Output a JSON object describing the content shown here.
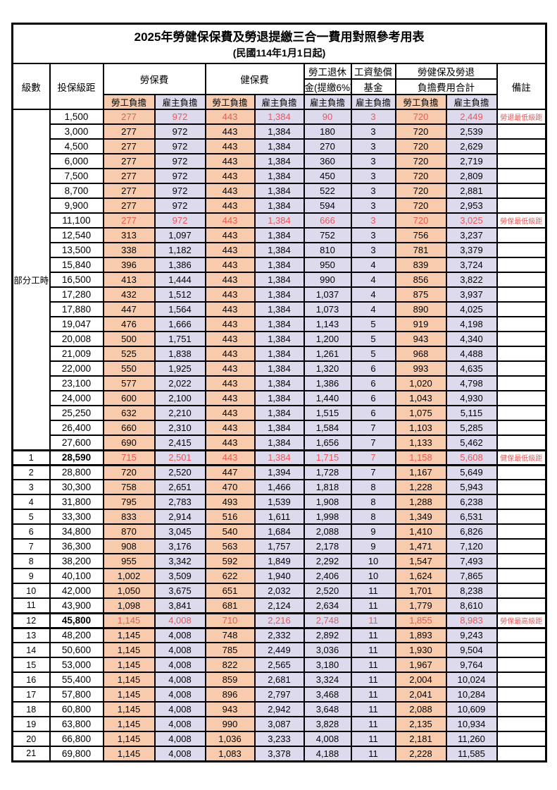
{
  "title": "2025年勞健保保費及勞退提繳三合一費用對照參考用表",
  "subtitle": "(民國114年1月1日起)",
  "colors": {
    "employee_column_bg": "#f8cbad",
    "employer_column_bg": "#dddaee",
    "highlight_text": "#e65a5a",
    "border": "#000000"
  },
  "header": {
    "level": "級數",
    "bracket": "投保級距",
    "labor_fee": "勞保費",
    "health_fee": "健保費",
    "pension_line1": "勞工退休",
    "pension_line2": "金(提繳6%)",
    "wage_fund_line1": "工資墊償",
    "wage_fund_line2": "基金",
    "total_line1": "勞健保及勞退",
    "total_line2": "負擔費用合計",
    "remark": "備註",
    "employee_share": "勞工負擔",
    "employer_share": "雇主負擔"
  },
  "part_time_label": "部分工時",
  "part_time_span": 23,
  "rows": [
    {
      "level": "",
      "bracket": "1,500",
      "values": [
        "277",
        "972",
        "443",
        "1,384",
        "90",
        "3",
        "720",
        "2,449"
      ],
      "remark": "勞退最低級距",
      "red": true,
      "bold": false,
      "thick": false
    },
    {
      "level": "",
      "bracket": "3,000",
      "values": [
        "277",
        "972",
        "443",
        "1,384",
        "180",
        "3",
        "720",
        "2,539"
      ],
      "remark": "",
      "red": false,
      "bold": false,
      "thick": false
    },
    {
      "level": "",
      "bracket": "4,500",
      "values": [
        "277",
        "972",
        "443",
        "1,384",
        "270",
        "3",
        "720",
        "2,629"
      ],
      "remark": "",
      "red": false,
      "bold": false,
      "thick": false
    },
    {
      "level": "",
      "bracket": "6,000",
      "values": [
        "277",
        "972",
        "443",
        "1,384",
        "360",
        "3",
        "720",
        "2,719"
      ],
      "remark": "",
      "red": false,
      "bold": false,
      "thick": false
    },
    {
      "level": "",
      "bracket": "7,500",
      "values": [
        "277",
        "972",
        "443",
        "1,384",
        "450",
        "3",
        "720",
        "2,809"
      ],
      "remark": "",
      "red": false,
      "bold": false,
      "thick": false
    },
    {
      "level": "",
      "bracket": "8,700",
      "values": [
        "277",
        "972",
        "443",
        "1,384",
        "522",
        "3",
        "720",
        "2,881"
      ],
      "remark": "",
      "red": false,
      "bold": false,
      "thick": false
    },
    {
      "level": "",
      "bracket": "9,900",
      "values": [
        "277",
        "972",
        "443",
        "1,384",
        "594",
        "3",
        "720",
        "2,953"
      ],
      "remark": "",
      "red": false,
      "bold": false,
      "thick": false
    },
    {
      "level": "",
      "bracket": "11,100",
      "values": [
        "277",
        "972",
        "443",
        "1,384",
        "666",
        "3",
        "720",
        "3,025"
      ],
      "remark": "勞保最低級距",
      "red": true,
      "bold": false,
      "thick": false
    },
    {
      "level": "",
      "bracket": "12,540",
      "values": [
        "313",
        "1,097",
        "443",
        "1,384",
        "752",
        "3",
        "756",
        "3,237"
      ],
      "remark": "",
      "red": false,
      "bold": false,
      "thick": false
    },
    {
      "level": "",
      "bracket": "13,500",
      "values": [
        "338",
        "1,182",
        "443",
        "1,384",
        "810",
        "3",
        "781",
        "3,379"
      ],
      "remark": "",
      "red": false,
      "bold": false,
      "thick": false
    },
    {
      "level": "",
      "bracket": "15,840",
      "values": [
        "396",
        "1,386",
        "443",
        "1,384",
        "950",
        "4",
        "839",
        "3,724"
      ],
      "remark": "",
      "red": false,
      "bold": false,
      "thick": false
    },
    {
      "level": "",
      "bracket": "16,500",
      "values": [
        "413",
        "1,444",
        "443",
        "1,384",
        "990",
        "4",
        "856",
        "3,822"
      ],
      "remark": "",
      "red": false,
      "bold": false,
      "thick": false
    },
    {
      "level": "",
      "bracket": "17,280",
      "values": [
        "432",
        "1,512",
        "443",
        "1,384",
        "1,037",
        "4",
        "875",
        "3,937"
      ],
      "remark": "",
      "red": false,
      "bold": false,
      "thick": false
    },
    {
      "level": "",
      "bracket": "17,880",
      "values": [
        "447",
        "1,564",
        "443",
        "1,384",
        "1,073",
        "4",
        "890",
        "4,025"
      ],
      "remark": "",
      "red": false,
      "bold": false,
      "thick": false
    },
    {
      "level": "",
      "bracket": "19,047",
      "values": [
        "476",
        "1,666",
        "443",
        "1,384",
        "1,143",
        "5",
        "919",
        "4,198"
      ],
      "remark": "",
      "red": false,
      "bold": false,
      "thick": false
    },
    {
      "level": "",
      "bracket": "20,008",
      "values": [
        "500",
        "1,751",
        "443",
        "1,384",
        "1,200",
        "5",
        "943",
        "4,340"
      ],
      "remark": "",
      "red": false,
      "bold": false,
      "thick": false
    },
    {
      "level": "",
      "bracket": "21,009",
      "values": [
        "525",
        "1,838",
        "443",
        "1,384",
        "1,261",
        "5",
        "968",
        "4,488"
      ],
      "remark": "",
      "red": false,
      "bold": false,
      "thick": false
    },
    {
      "level": "",
      "bracket": "22,000",
      "values": [
        "550",
        "1,925",
        "443",
        "1,384",
        "1,320",
        "6",
        "993",
        "4,635"
      ],
      "remark": "",
      "red": false,
      "bold": false,
      "thick": false
    },
    {
      "level": "",
      "bracket": "23,100",
      "values": [
        "577",
        "2,022",
        "443",
        "1,384",
        "1,386",
        "6",
        "1,020",
        "4,798"
      ],
      "remark": "",
      "red": false,
      "bold": false,
      "thick": false
    },
    {
      "level": "",
      "bracket": "24,000",
      "values": [
        "600",
        "2,100",
        "443",
        "1,384",
        "1,440",
        "6",
        "1,043",
        "4,930"
      ],
      "remark": "",
      "red": false,
      "bold": false,
      "thick": false
    },
    {
      "level": "",
      "bracket": "25,250",
      "values": [
        "632",
        "2,210",
        "443",
        "1,384",
        "1,515",
        "6",
        "1,075",
        "5,115"
      ],
      "remark": "",
      "red": false,
      "bold": false,
      "thick": false
    },
    {
      "level": "",
      "bracket": "26,400",
      "values": [
        "660",
        "2,310",
        "443",
        "1,384",
        "1,584",
        "7",
        "1,103",
        "5,285"
      ],
      "remark": "",
      "red": false,
      "bold": false,
      "thick": false
    },
    {
      "level": "",
      "bracket": "27,600",
      "values": [
        "690",
        "2,415",
        "443",
        "1,384",
        "1,656",
        "7",
        "1,133",
        "5,462"
      ],
      "remark": "",
      "red": false,
      "bold": false,
      "thick": false
    },
    {
      "level": "1",
      "bracket": "28,590",
      "values": [
        "715",
        "2,501",
        "443",
        "1,384",
        "1,715",
        "7",
        "1,158",
        "5,608"
      ],
      "remark": "健保最低級距",
      "red": true,
      "bold": true,
      "thick": true
    },
    {
      "level": "2",
      "bracket": "28,800",
      "values": [
        "720",
        "2,520",
        "447",
        "1,394",
        "1,728",
        "7",
        "1,167",
        "5,649"
      ],
      "remark": "",
      "red": false,
      "bold": false,
      "thick": false
    },
    {
      "level": "3",
      "bracket": "30,300",
      "values": [
        "758",
        "2,651",
        "470",
        "1,466",
        "1,818",
        "8",
        "1,228",
        "5,943"
      ],
      "remark": "",
      "red": false,
      "bold": false,
      "thick": false
    },
    {
      "level": "4",
      "bracket": "31,800",
      "values": [
        "795",
        "2,783",
        "493",
        "1,539",
        "1,908",
        "8",
        "1,288",
        "6,238"
      ],
      "remark": "",
      "red": false,
      "bold": false,
      "thick": false
    },
    {
      "level": "5",
      "bracket": "33,300",
      "values": [
        "833",
        "2,914",
        "516",
        "1,611",
        "1,998",
        "8",
        "1,349",
        "6,531"
      ],
      "remark": "",
      "red": false,
      "bold": false,
      "thick": false
    },
    {
      "level": "6",
      "bracket": "34,800",
      "values": [
        "870",
        "3,045",
        "540",
        "1,684",
        "2,088",
        "9",
        "1,410",
        "6,826"
      ],
      "remark": "",
      "red": false,
      "bold": false,
      "thick": false
    },
    {
      "level": "7",
      "bracket": "36,300",
      "values": [
        "908",
        "3,176",
        "563",
        "1,757",
        "2,178",
        "9",
        "1,471",
        "7,120"
      ],
      "remark": "",
      "red": false,
      "bold": false,
      "thick": false
    },
    {
      "level": "8",
      "bracket": "38,200",
      "values": [
        "955",
        "3,342",
        "592",
        "1,849",
        "2,292",
        "10",
        "1,547",
        "7,493"
      ],
      "remark": "",
      "red": false,
      "bold": false,
      "thick": false
    },
    {
      "level": "9",
      "bracket": "40,100",
      "values": [
        "1,002",
        "3,509",
        "622",
        "1,940",
        "2,406",
        "10",
        "1,624",
        "7,865"
      ],
      "remark": "",
      "red": false,
      "bold": false,
      "thick": false
    },
    {
      "level": "10",
      "bracket": "42,000",
      "values": [
        "1,050",
        "3,675",
        "651",
        "2,032",
        "2,520",
        "11",
        "1,701",
        "8,238"
      ],
      "remark": "",
      "red": false,
      "bold": false,
      "thick": false
    },
    {
      "level": "11",
      "bracket": "43,900",
      "values": [
        "1,098",
        "3,841",
        "681",
        "2,124",
        "2,634",
        "11",
        "1,779",
        "8,610"
      ],
      "remark": "",
      "red": false,
      "bold": false,
      "thick": false
    },
    {
      "level": "12",
      "bracket": "45,800",
      "values": [
        "1,145",
        "4,008",
        "710",
        "2,216",
        "2,748",
        "11",
        "1,855",
        "8,983"
      ],
      "remark": "勞保最高級距",
      "red": true,
      "bold": true,
      "thick": true
    },
    {
      "level": "13",
      "bracket": "48,200",
      "values": [
        "1,145",
        "4,008",
        "748",
        "2,332",
        "2,892",
        "11",
        "1,893",
        "9,243"
      ],
      "remark": "",
      "red": false,
      "bold": false,
      "thick": false
    },
    {
      "level": "14",
      "bracket": "50,600",
      "values": [
        "1,145",
        "4,008",
        "785",
        "2,449",
        "3,036",
        "11",
        "1,930",
        "9,504"
      ],
      "remark": "",
      "red": false,
      "bold": false,
      "thick": false
    },
    {
      "level": "15",
      "bracket": "53,000",
      "values": [
        "1,145",
        "4,008",
        "822",
        "2,565",
        "3,180",
        "11",
        "1,967",
        "9,764"
      ],
      "remark": "",
      "red": false,
      "bold": false,
      "thick": false
    },
    {
      "level": "16",
      "bracket": "55,400",
      "values": [
        "1,145",
        "4,008",
        "859",
        "2,681",
        "3,324",
        "11",
        "2,004",
        "10,024"
      ],
      "remark": "",
      "red": false,
      "bold": false,
      "thick": false
    },
    {
      "level": "17",
      "bracket": "57,800",
      "values": [
        "1,145",
        "4,008",
        "896",
        "2,797",
        "3,468",
        "11",
        "2,041",
        "10,284"
      ],
      "remark": "",
      "red": false,
      "bold": false,
      "thick": false
    },
    {
      "level": "18",
      "bracket": "60,800",
      "values": [
        "1,145",
        "4,008",
        "943",
        "2,942",
        "3,648",
        "11",
        "2,088",
        "10,609"
      ],
      "remark": "",
      "red": false,
      "bold": false,
      "thick": false
    },
    {
      "level": "19",
      "bracket": "63,800",
      "values": [
        "1,145",
        "4,008",
        "990",
        "3,087",
        "3,828",
        "11",
        "2,135",
        "10,934"
      ],
      "remark": "",
      "red": false,
      "bold": false,
      "thick": false
    },
    {
      "level": "20",
      "bracket": "66,800",
      "values": [
        "1,145",
        "4,008",
        "1,036",
        "3,233",
        "4,008",
        "11",
        "2,181",
        "11,260"
      ],
      "remark": "",
      "red": false,
      "bold": false,
      "thick": false
    },
    {
      "level": "21",
      "bracket": "69,800",
      "values": [
        "1,145",
        "4,008",
        "1,083",
        "3,378",
        "4,188",
        "11",
        "2,228",
        "11,585"
      ],
      "remark": "",
      "red": false,
      "bold": false,
      "thick": false
    }
  ]
}
